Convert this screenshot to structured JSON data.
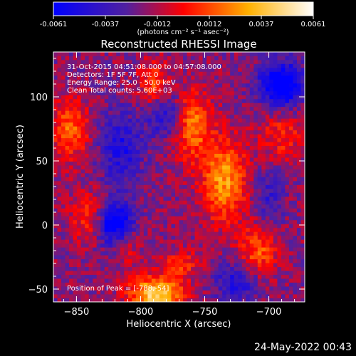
{
  "colorbar": {
    "ticks": [
      "-0.0061",
      "-0.0037",
      "-0.0012",
      "0.0012",
      "0.0037",
      "0.0061"
    ],
    "units": "(photons cm⁻² s⁻¹ asec⁻²)"
  },
  "chart_data": {
    "type": "heatmap",
    "title": "Reconstructed RHESSI Image",
    "xlabel": "Heliocentric X (arcsec)",
    "ylabel": "Heliocentric Y (arcsec)",
    "xlim": [
      -868,
      -672
    ],
    "ylim": [
      -60,
      135
    ],
    "xticks": [
      -850,
      -800,
      -750,
      -700
    ],
    "yticks": [
      -50,
      0,
      50,
      100
    ],
    "clim": [
      -0.0061,
      0.0061
    ],
    "colormap": [
      "#0000ff",
      "#5020a0",
      "#ff0000",
      "#ffb000",
      "#ffffff"
    ],
    "annotations": [
      "31-Oct-2015 04:51:08.000 to 04:57:08.000",
      "Detectors: 1F 5F 7F, Att 0",
      "Energy Range: 25.0 - 50.0 keV",
      "Clean    Total counts: 5.60E+03"
    ],
    "peak_label": "Position of Peak = [-788,-54]",
    "peak": {
      "x": -788,
      "y": -54
    },
    "blobs": [
      {
        "x": -788,
        "y": -54,
        "sx": 14,
        "sy": 10,
        "a": 0.0061
      },
      {
        "x": -760,
        "y": 78,
        "sx": 10,
        "sy": 18,
        "a": 0.004
      },
      {
        "x": -735,
        "y": 35,
        "sx": 12,
        "sy": 22,
        "a": 0.0045
      },
      {
        "x": -855,
        "y": 75,
        "sx": 10,
        "sy": 16,
        "a": 0.0035
      },
      {
        "x": -840,
        "y": 5,
        "sx": 10,
        "sy": 14,
        "a": 0.0025
      },
      {
        "x": -708,
        "y": -20,
        "sx": 10,
        "sy": 14,
        "a": 0.0032
      },
      {
        "x": -690,
        "y": 70,
        "sx": 12,
        "sy": 14,
        "a": 0.0022
      },
      {
        "x": -790,
        "y": 110,
        "sx": 8,
        "sy": 12,
        "a": 0.0028
      },
      {
        "x": -812,
        "y": -15,
        "sx": 8,
        "sy": 10,
        "a": 0.002
      },
      {
        "x": -768,
        "y": -30,
        "sx": 10,
        "sy": 8,
        "a": 0.0022
      }
    ],
    "dips": [
      {
        "x": -690,
        "y": 110,
        "sx": 12,
        "sy": 12,
        "a": 0.006
      },
      {
        "x": -820,
        "y": 0,
        "sx": 10,
        "sy": 12,
        "a": 0.0055
      },
      {
        "x": -780,
        "y": 85,
        "sx": 10,
        "sy": 12,
        "a": 0.003
      },
      {
        "x": -815,
        "y": 60,
        "sx": 12,
        "sy": 20,
        "a": 0.003
      },
      {
        "x": -725,
        "y": -45,
        "sx": 12,
        "sy": 10,
        "a": 0.003
      },
      {
        "x": -700,
        "y": 20,
        "sx": 8,
        "sy": 16,
        "a": 0.002
      }
    ]
  },
  "footer": {
    "timestamp": "24-May-2022 00:43"
  }
}
